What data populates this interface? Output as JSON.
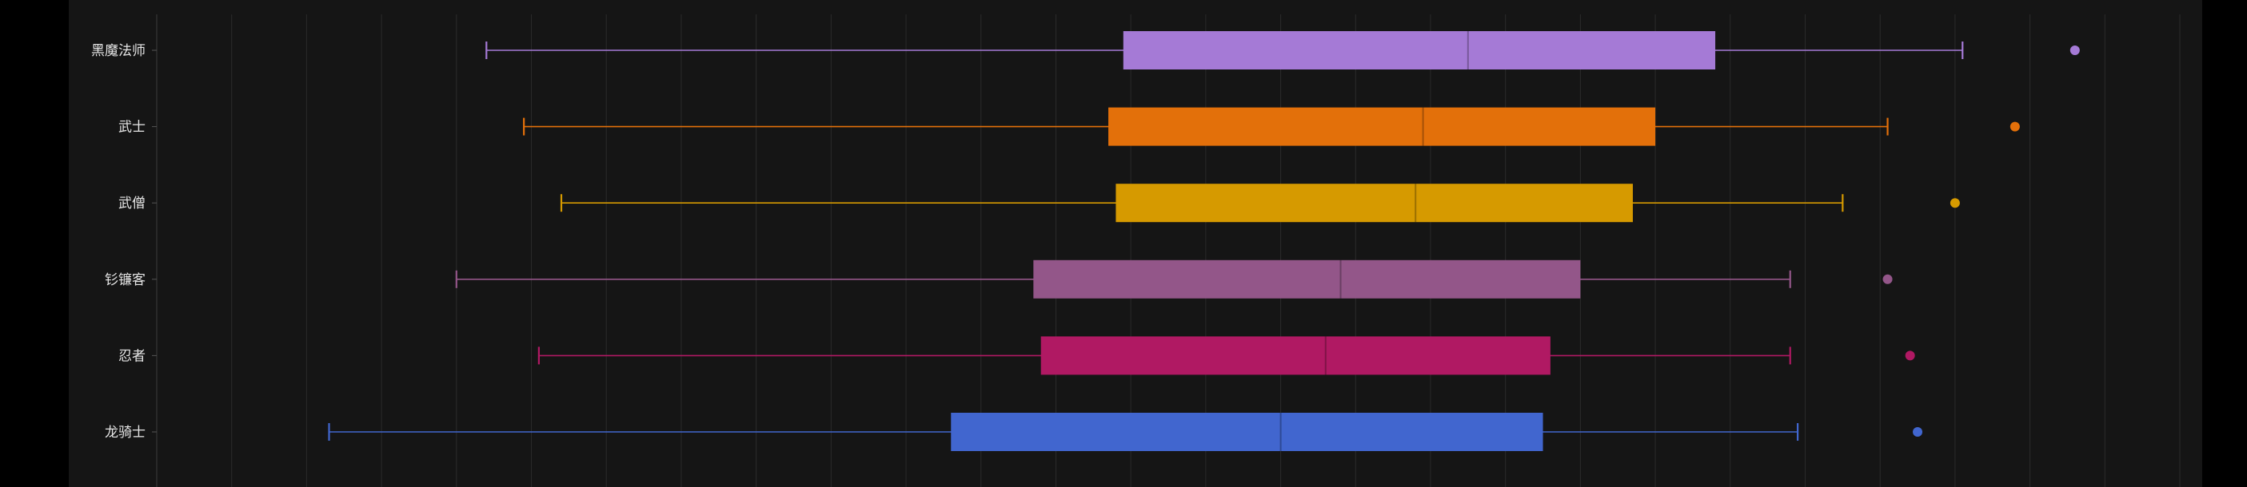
{
  "chart_data": {
    "type": "box",
    "orientation": "horizontal",
    "title": "",
    "xlabel": "",
    "ylabel": "",
    "grid": true,
    "x_range": [
      0,
      270
    ],
    "categories": [
      "黑魔法师",
      "武士",
      "武僧",
      "钐镰客",
      "忍者",
      "龙骑士"
    ],
    "series": [
      {
        "category": "黑魔法师",
        "min": 44,
        "q1": 129,
        "median": 175,
        "q3": 208,
        "max": 241,
        "outliers": [
          256
        ],
        "color": "#a57ad6"
      },
      {
        "category": "武士",
        "min": 49,
        "q1": 127,
        "median": 169,
        "q3": 200,
        "max": 231,
        "outliers": [
          248
        ],
        "color": "#e3700a"
      },
      {
        "category": "武僧",
        "min": 54,
        "q1": 128,
        "median": 168,
        "q3": 197,
        "max": 225,
        "outliers": [
          240
        ],
        "color": "#d69a00"
      },
      {
        "category": "钐镰客",
        "min": 40,
        "q1": 117,
        "median": 158,
        "q3": 190,
        "max": 218,
        "outliers": [
          231
        ],
        "color": "#935689"
      },
      {
        "category": "忍者",
        "min": 51,
        "q1": 118,
        "median": 156,
        "q3": 186,
        "max": 218,
        "outliers": [
          234
        ],
        "color": "#b01963"
      },
      {
        "category": "龙骑士",
        "min": 23,
        "q1": 106,
        "median": 150,
        "q3": 185,
        "max": 219,
        "outliers": [
          235
        ],
        "color": "#4166cf"
      }
    ]
  }
}
